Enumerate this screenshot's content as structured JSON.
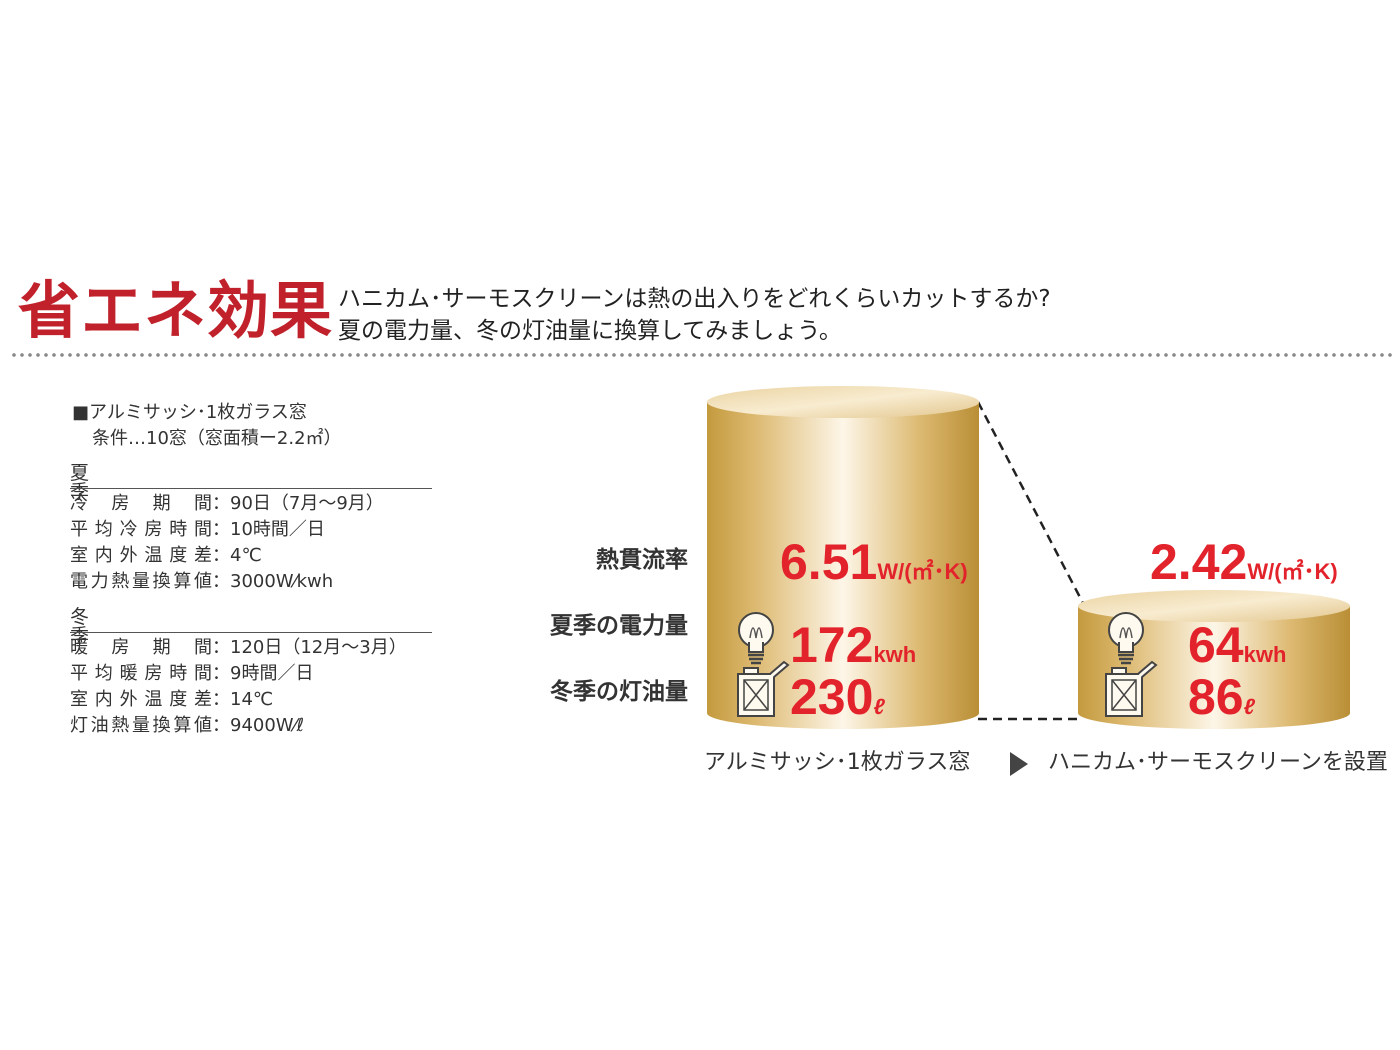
{
  "title": "省エネ効果",
  "subtitle": {
    "line1": "ハニカム･サーモスクリーンは熱の出入りをどれくらいカットするか?",
    "line2": "夏の電力量、冬の灯油量に換算してみましょう。"
  },
  "conditions": {
    "header": "■アルミサッシ･1枚ガラス窓",
    "sub": "条件…10窓（窓面積ー2.2㎡）",
    "summer": {
      "title": "夏季",
      "rows": [
        {
          "label": "冷房期間",
          "value": "：90日（7月～9月）"
        },
        {
          "label": "平均冷房時間",
          "value": "：10時間／日"
        },
        {
          "label": "室内外温度差",
          "value": "：4℃"
        },
        {
          "label": "電力熱量換算値",
          "value": "：3000W⁄kwh"
        }
      ]
    },
    "winter": {
      "title": "冬季",
      "rows": [
        {
          "label": "暖房期間",
          "value": "：120日（12月～3月）"
        },
        {
          "label": "平均暖房時間",
          "value": "：9時間／日"
        },
        {
          "label": "室内外温度差",
          "value": "：14℃"
        },
        {
          "label": "灯油熱量換算値",
          "value": "：9400W⁄ℓ"
        }
      ]
    }
  },
  "row_labels": {
    "heat": "熱貫流率",
    "electric": "夏季の電力量",
    "oil": "冬季の灯油量"
  },
  "before": {
    "caption": "アルミサッシ･1枚ガラス窓",
    "heat_value": "6.51",
    "heat_unit": "W/(㎡･K)",
    "electric_value": "172",
    "electric_unit": "kwh",
    "oil_value": "230",
    "oil_unit": "ℓ"
  },
  "after": {
    "caption": "ハニカム･サーモスクリーンを設置",
    "heat_value": "2.42",
    "heat_unit": "W/(㎡･K)",
    "electric_value": "64",
    "electric_unit": "kwh",
    "oil_value": "86",
    "oil_unit": "ℓ"
  },
  "colors": {
    "title_red": "#c0212b",
    "value_red": "#e3232b",
    "gold_dark": "#c59a3c",
    "gold_light": "#fbf3e1"
  },
  "icons": [
    "light-bulb-icon",
    "oil-can-icon",
    "arrow-right-icon"
  ]
}
